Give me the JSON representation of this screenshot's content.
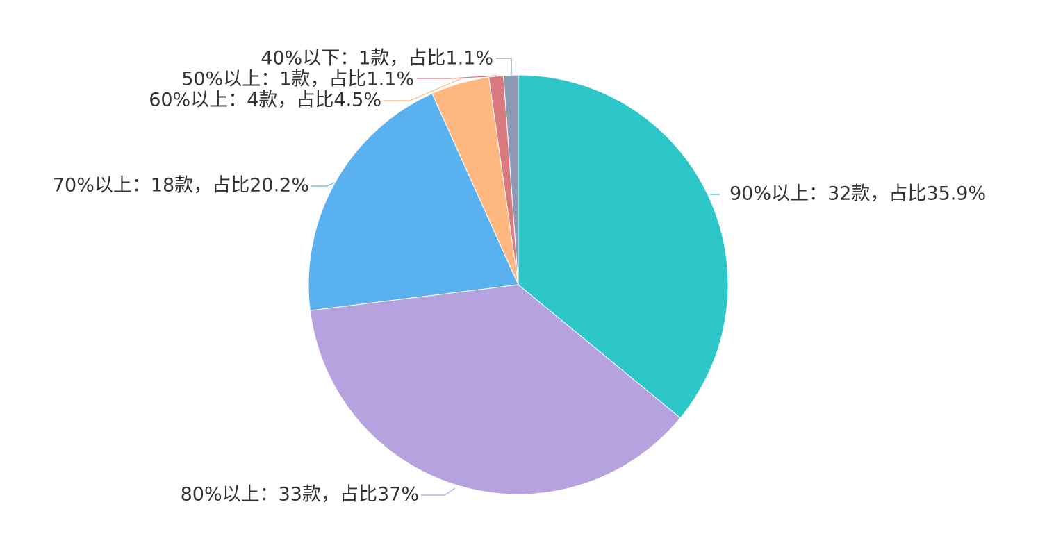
{
  "chart_data": {
    "type": "pie",
    "start_angle_deg": 90,
    "direction": "clockwise",
    "slices": [
      {
        "name": "90%以上",
        "value": 32,
        "label": "90%以上：32款，占比35.9%",
        "color": "#2EC7C9"
      },
      {
        "name": "80%以上",
        "value": 33,
        "label": "80%以上：33款，占比37%",
        "color": "#B6A2DE"
      },
      {
        "name": "70%以上",
        "value": 18,
        "label": "70%以上：18款，占比20.2%",
        "color": "#5AB1EF"
      },
      {
        "name": "60%以上",
        "value": 4,
        "label": "60%以上：4款，占比4.5%",
        "color": "#FFB980"
      },
      {
        "name": "50%以上",
        "value": 1,
        "label": "50%以上：1款，占比1.1%",
        "color": "#D87A80"
      },
      {
        "name": "40%以下",
        "value": 1,
        "label": "40%以下：1款，占比1.1%",
        "color": "#8D98B3"
      }
    ]
  }
}
